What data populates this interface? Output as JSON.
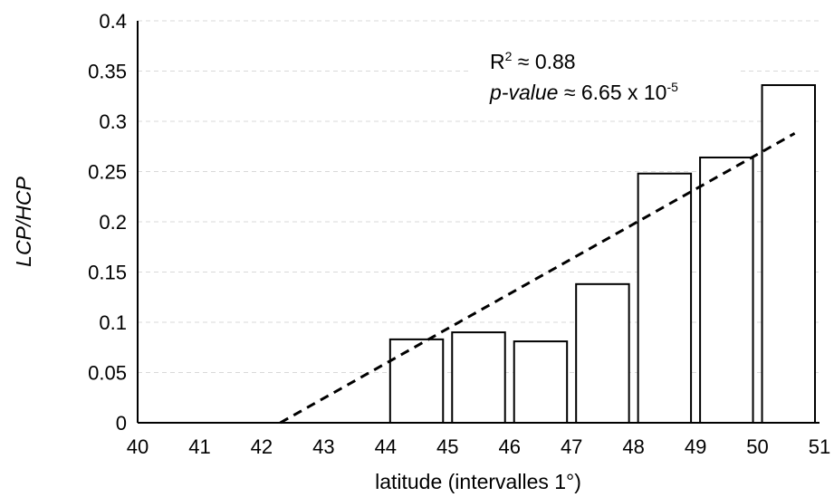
{
  "chart_data": {
    "type": "bar",
    "x_categories": [
      "40",
      "41",
      "42",
      "43",
      "44",
      "45",
      "46",
      "47",
      "48",
      "49",
      "50",
      "51"
    ],
    "bars": [
      {
        "from": 44,
        "to": 45,
        "value": 0.083
      },
      {
        "from": 45,
        "to": 46,
        "value": 0.09
      },
      {
        "from": 46,
        "to": 47,
        "value": 0.081
      },
      {
        "from": 47,
        "to": 48,
        "value": 0.138
      },
      {
        "from": 48,
        "to": 49,
        "value": 0.248
      },
      {
        "from": 49,
        "to": 50,
        "value": 0.264
      },
      {
        "from": 50,
        "to": 51,
        "value": 0.336
      }
    ],
    "trendline": {
      "style": "dashed",
      "x": [
        42.3,
        50.6
      ],
      "y": [
        0.0,
        0.288
      ]
    },
    "xlabel": "latitude (intervalles 1°)",
    "ylabel": "LCP/HCP",
    "ylim": [
      0,
      0.4
    ],
    "y_ticks": [
      "0",
      "0.05",
      "0.1",
      "0.15",
      "0.2",
      "0.25",
      "0.3",
      "0.35",
      "0.4"
    ],
    "grid": "horizontal dashed",
    "annotation": {
      "r2_prefix": "R",
      "r2_sup": "2",
      "r2_value": " ≈ 0.88",
      "p_label": "p-value",
      "p_value": " ≈ 6.65 x 10",
      "p_exp": "-5"
    },
    "colors": {
      "bar_fill": "#ffffff",
      "bar_stroke": "#000000",
      "grid": "#d9d9d9",
      "trend": "#000000"
    }
  }
}
